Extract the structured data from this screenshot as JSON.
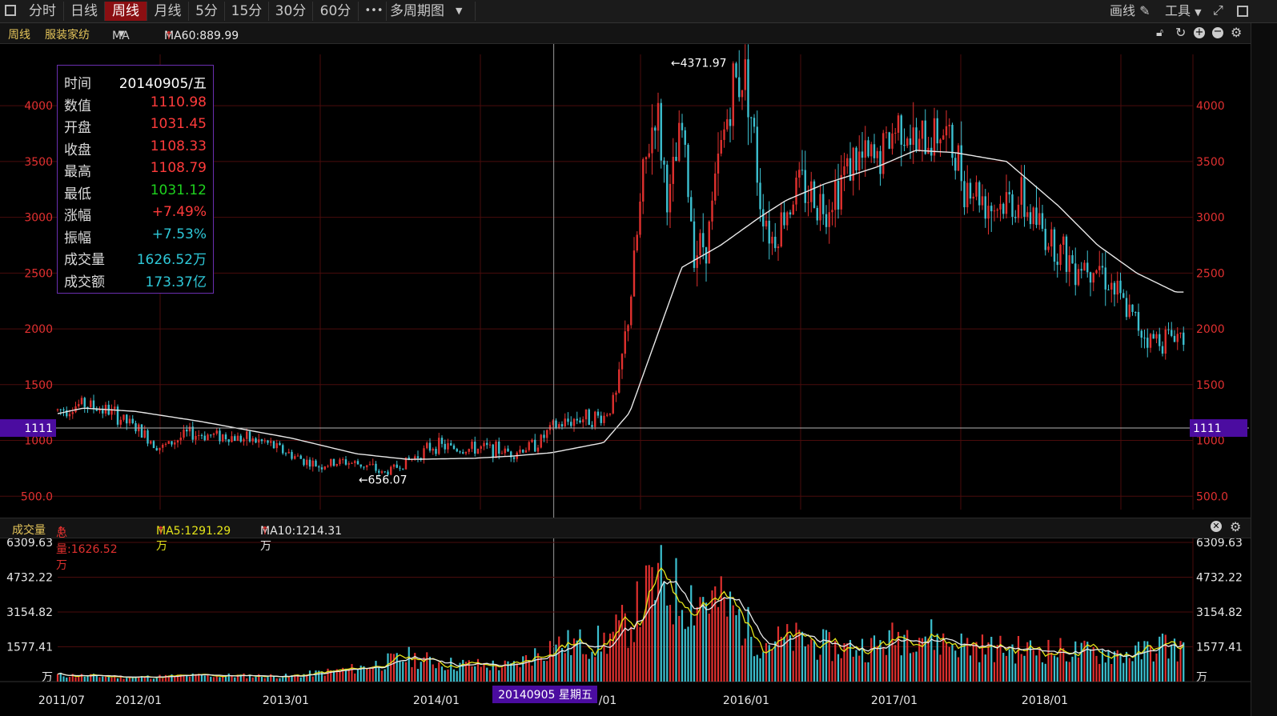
{
  "toolbar": {
    "tabs": [
      "分时",
      "日线",
      "周线",
      "月线",
      "5分",
      "15分",
      "30分",
      "60分"
    ],
    "active_tab": "周线",
    "more": "•••",
    "multi_period": "多周期图",
    "draw": "画线",
    "tools": "工具"
  },
  "infobar": {
    "period": "周线",
    "name": "服装家纺",
    "indicator": "MA",
    "ma60": "MA60:889.99"
  },
  "tooltip": {
    "rows": [
      {
        "k": "时间",
        "v": "20140905/五",
        "color": "#ffffff"
      },
      {
        "k": "数值",
        "v": "1110.98",
        "color": "#ff3b3b"
      },
      {
        "k": "开盘",
        "v": "1031.45",
        "color": "#ff3b3b"
      },
      {
        "k": "收盘",
        "v": "1108.33",
        "color": "#ff3b3b"
      },
      {
        "k": "最高",
        "v": "1108.79",
        "color": "#ff3b3b"
      },
      {
        "k": "最低",
        "v": "1031.12",
        "color": "#1ed21e"
      },
      {
        "k": "涨幅",
        "v": "+7.49%",
        "color": "#ff3b3b"
      },
      {
        "k": "振幅",
        "v": "+7.53%",
        "color": "#2ec8d8"
      },
      {
        "k": "成交量",
        "v": "1626.52万",
        "color": "#2ec8d8"
      },
      {
        "k": "成交额",
        "v": "173.37亿",
        "color": "#2ec8d8"
      }
    ]
  },
  "volume_bar": {
    "title": "成交量",
    "total": "总量:1626.52万",
    "ma5": "MA5:1291.29万",
    "ma10": "MA10:1214.31万"
  },
  "colors": {
    "up": "#e0302e",
    "down": "#3cc0d0",
    "ma": "#e8e8e8",
    "ma5": "#e5e51a",
    "grid": "#4a0c0c",
    "axis_label": "#e03030",
    "crosshair_box": "#4b0ca0"
  },
  "chart_data": {
    "type": "candlestick",
    "price_axis": {
      "ticks": [
        "500.0",
        "1000",
        "1500",
        "2000",
        "2500",
        "3000",
        "3500",
        "4000"
      ],
      "range": [
        380,
        4460
      ]
    },
    "price_annotations": [
      {
        "label": "←4371.97",
        "x": "2015/06",
        "y": 4371.97
      },
      {
        "label": "←656.07",
        "x": "2013/06",
        "y": 656.07
      }
    ],
    "crosshair": {
      "price_label": "1111",
      "date_label": "20140905 星期五",
      "x": "2014/09"
    },
    "x_tick_labels": [
      "2011/07",
      "2012/01",
      "2013/01",
      "2014/01",
      "/01",
      "2016/01",
      "2017/01",
      "2018/01"
    ],
    "series_anchors_close": [
      [
        "2011/07",
        1270
      ],
      [
        "2011/09",
        1330
      ],
      [
        "2011/11",
        1260
      ],
      [
        "2012/01",
        1110
      ],
      [
        "2012/03",
        930
      ],
      [
        "2012/05",
        1060
      ],
      [
        "2012/08",
        1040
      ],
      [
        "2012/11",
        980
      ],
      [
        "2013/01",
        870
      ],
      [
        "2013/03",
        770
      ],
      [
        "2013/05",
        810
      ],
      [
        "2013/07",
        770
      ],
      [
        "2013/08",
        700
      ],
      [
        "2013/10",
        820
      ],
      [
        "2013/12",
        960
      ],
      [
        "2014/02",
        920
      ],
      [
        "2014/04",
        930
      ],
      [
        "2014/06",
        890
      ],
      [
        "2014/08",
        980
      ],
      [
        "2014/09",
        1108
      ],
      [
        "2014/11",
        1200
      ],
      [
        "2015/01",
        1210
      ],
      [
        "2015/02",
        1400
      ],
      [
        "2015/03",
        2200
      ],
      [
        "2015/04",
        3300
      ],
      [
        "2015/05",
        4000
      ],
      [
        "2015/06",
        3100
      ],
      [
        "2015/07",
        3800
      ],
      [
        "2015/08",
        2700
      ],
      [
        "2015/09",
        2800
      ],
      [
        "2015/10",
        3600
      ],
      [
        "2015/11",
        4200
      ],
      [
        "2015/12",
        4300
      ],
      [
        "2016/01",
        3200
      ],
      [
        "2016/02",
        2800
      ],
      [
        "2016/04",
        3300
      ],
      [
        "2016/06",
        3100
      ],
      [
        "2016/08",
        3500
      ],
      [
        "2016/10",
        3500
      ],
      [
        "2016/12",
        3900
      ],
      [
        "2017/01",
        3600
      ],
      [
        "2017/03",
        3800
      ],
      [
        "2017/05",
        3300
      ],
      [
        "2017/07",
        3100
      ],
      [
        "2017/09",
        3150
      ],
      [
        "2017/11",
        2850
      ],
      [
        "2018/01",
        2600
      ],
      [
        "2018/03",
        2600
      ],
      [
        "2018/05",
        2200
      ],
      [
        "2018/07",
        1900
      ],
      [
        "2018/09",
        1950
      ]
    ],
    "ma60_anchors": [
      [
        "2011/07",
        1240
      ],
      [
        "2011/09",
        1290
      ],
      [
        "2012/01",
        1260
      ],
      [
        "2012/06",
        1170
      ],
      [
        "2013/01",
        1020
      ],
      [
        "2013/06",
        880
      ],
      [
        "2013/10",
        830
      ],
      [
        "2014/03",
        840
      ],
      [
        "2014/06",
        860
      ],
      [
        "2014/09",
        890
      ],
      [
        "2015/01",
        980
      ],
      [
        "2015/03",
        1250
      ],
      [
        "2015/05",
        1900
      ],
      [
        "2015/07",
        2550
      ],
      [
        "2015/10",
        2750
      ],
      [
        "2016/01",
        3000
      ],
      [
        "2016/03",
        3150
      ],
      [
        "2016/06",
        3300
      ],
      [
        "2016/10",
        3450
      ],
      [
        "2017/01",
        3600
      ],
      [
        "2017/04",
        3580
      ],
      [
        "2017/08",
        3500
      ],
      [
        "2017/12",
        3100
      ],
      [
        "2018/03",
        2750
      ],
      [
        "2018/06",
        2500
      ],
      [
        "2018/09",
        2330
      ]
    ],
    "volume_axis": {
      "ticks": [
        "6309.63",
        "4732.22",
        "3154.82",
        "1577.41",
        "万"
      ],
      "max": 6309.63
    },
    "volume_anchors": [
      [
        "2011/07",
        300
      ],
      [
        "2012/01",
        200
      ],
      [
        "2012/06",
        280
      ],
      [
        "2013/01",
        250
      ],
      [
        "2013/06",
        600
      ],
      [
        "2013/10",
        1100
      ],
      [
        "2014/01",
        800
      ],
      [
        "2014/06",
        700
      ],
      [
        "2014/09",
        1626.52
      ],
      [
        "2015/01",
        1800
      ],
      [
        "2015/03",
        2700
      ],
      [
        "2015/05",
        4500
      ],
      [
        "2015/07",
        3900
      ],
      [
        "2015/09",
        3800
      ],
      [
        "2015/11",
        3100
      ],
      [
        "2016/01",
        1800
      ],
      [
        "2016/04",
        1900
      ],
      [
        "2016/07",
        1500
      ],
      [
        "2016/10",
        1600
      ],
      [
        "2017/01",
        2400
      ],
      [
        "2017/03",
        1800
      ],
      [
        "2017/07",
        1500
      ],
      [
        "2017/12",
        1400
      ],
      [
        "2018/03",
        1300
      ],
      [
        "2018/06",
        1250
      ],
      [
        "2018/08",
        1700
      ],
      [
        "2018/09",
        1500
      ]
    ]
  }
}
